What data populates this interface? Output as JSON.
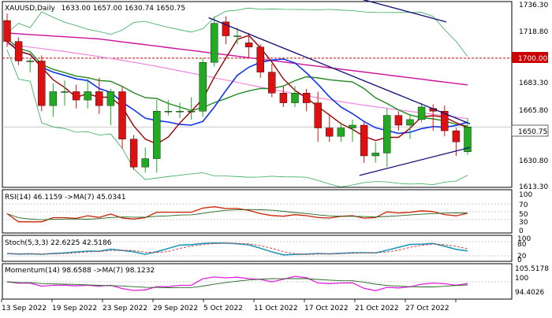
{
  "header": {
    "symbol_title": "XAUUSD,Daily",
    "ohlc": "1633.00 1657.00 1630.74 1650.75"
  },
  "price_axis": {
    "labels": [
      "1736.30",
      "1718.80",
      "1700.00",
      "1683.30",
      "1665.80",
      "1650.75",
      "1630.80",
      "1613.30"
    ],
    "level_1700": "1700.00",
    "current": "1650.75"
  },
  "date_axis": {
    "labels": [
      "13 Sep 2022",
      "19 Sep 2022",
      "23 Sep 2022",
      "29 Sep 2022",
      "5 Oct 2022",
      "11 Oct 2022",
      "17 Oct 2022",
      "21 Oct 2022",
      "27 Oct 2022"
    ]
  },
  "rsi_panel": {
    "title": "RSI(14) 46.1159 ->MA(7) 45.0341",
    "scale": [
      "100",
      "70",
      "50",
      "30",
      "0"
    ]
  },
  "stoch_panel": {
    "title": "Stoch(5,3,3) 22.6225 42.5186",
    "scale": [
      "100",
      "80",
      "20",
      "0"
    ]
  },
  "momentum_panel": {
    "title": "Momentum(14) 98.6588 ->MA(7) 98.1232",
    "scale": [
      "105.5178",
      "100",
      "94.4026"
    ]
  },
  "colors": {
    "bull": "#22aa22",
    "bear": "#dd1111",
    "blue_ma": "#1133ee",
    "maroon_ma": "#990000",
    "green_ma": "#228822",
    "magenta_ma": "#cc1199",
    "pink_ma": "#ee88dd",
    "trendline": "#111177",
    "level_line": "#cc0000",
    "rsi": "#cc2200",
    "rsi_ma": "#226622",
    "stoch_main": "#2299bb",
    "stoch_signal": "#cc3333",
    "mom": "#dd22dd",
    "mom_ma": "#226622"
  },
  "chart_data": {
    "type": "candlestick",
    "ylim": [
      1608,
      1740
    ],
    "candles": [
      {
        "o": 1727,
        "h": 1732,
        "l": 1708,
        "c": 1712
      },
      {
        "o": 1712,
        "h": 1715,
        "l": 1695,
        "c": 1698
      },
      {
        "o": 1698,
        "h": 1700,
        "l": 1690,
        "c": 1698
      },
      {
        "o": 1698,
        "h": 1702,
        "l": 1662,
        "c": 1666
      },
      {
        "o": 1666,
        "h": 1682,
        "l": 1658,
        "c": 1676
      },
      {
        "o": 1676,
        "h": 1684,
        "l": 1666,
        "c": 1676
      },
      {
        "o": 1676,
        "h": 1681,
        "l": 1664,
        "c": 1670
      },
      {
        "o": 1670,
        "h": 1685,
        "l": 1664,
        "c": 1676
      },
      {
        "o": 1676,
        "h": 1686,
        "l": 1660,
        "c": 1666
      },
      {
        "o": 1666,
        "h": 1678,
        "l": 1652,
        "c": 1676
      },
      {
        "o": 1676,
        "h": 1680,
        "l": 1635,
        "c": 1642
      },
      {
        "o": 1642,
        "h": 1645,
        "l": 1620,
        "c": 1622
      },
      {
        "o": 1622,
        "h": 1636,
        "l": 1618,
        "c": 1628
      },
      {
        "o": 1628,
        "h": 1670,
        "l": 1618,
        "c": 1662
      },
      {
        "o": 1662,
        "h": 1670,
        "l": 1659,
        "c": 1662
      },
      {
        "o": 1662,
        "h": 1668,
        "l": 1657,
        "c": 1662
      },
      {
        "o": 1662,
        "h": 1672,
        "l": 1656,
        "c": 1662
      },
      {
        "o": 1662,
        "h": 1700,
        "l": 1658,
        "c": 1697
      },
      {
        "o": 1697,
        "h": 1730,
        "l": 1694,
        "c": 1725
      },
      {
        "o": 1726,
        "h": 1730,
        "l": 1710,
        "c": 1716
      },
      {
        "o": 1716,
        "h": 1722,
        "l": 1710,
        "c": 1716
      },
      {
        "o": 1711,
        "h": 1718,
        "l": 1700,
        "c": 1708
      },
      {
        "o": 1708,
        "h": 1710,
        "l": 1686,
        "c": 1690
      },
      {
        "o": 1690,
        "h": 1696,
        "l": 1672,
        "c": 1675
      },
      {
        "o": 1675,
        "h": 1680,
        "l": 1665,
        "c": 1668
      },
      {
        "o": 1668,
        "h": 1680,
        "l": 1665,
        "c": 1675
      },
      {
        "o": 1675,
        "h": 1678,
        "l": 1662,
        "c": 1668
      },
      {
        "o": 1668,
        "h": 1676,
        "l": 1640,
        "c": 1650
      },
      {
        "o": 1650,
        "h": 1660,
        "l": 1640,
        "c": 1644
      },
      {
        "o": 1644,
        "h": 1654,
        "l": 1640,
        "c": 1650
      },
      {
        "o": 1650,
        "h": 1656,
        "l": 1640,
        "c": 1652
      },
      {
        "o": 1652,
        "h": 1654,
        "l": 1625,
        "c": 1630
      },
      {
        "o": 1630,
        "h": 1640,
        "l": 1625,
        "c": 1632
      },
      {
        "o": 1632,
        "h": 1664,
        "l": 1622,
        "c": 1659
      },
      {
        "o": 1659,
        "h": 1662,
        "l": 1648,
        "c": 1652
      },
      {
        "o": 1652,
        "h": 1660,
        "l": 1642,
        "c": 1656
      },
      {
        "o": 1656,
        "h": 1668,
        "l": 1654,
        "c": 1665
      },
      {
        "o": 1664,
        "h": 1667,
        "l": 1648,
        "c": 1662
      },
      {
        "o": 1662,
        "h": 1666,
        "l": 1644,
        "c": 1648
      },
      {
        "o": 1648,
        "h": 1650,
        "l": 1630,
        "c": 1640
      },
      {
        "o": 1633,
        "h": 1657,
        "l": 1630.74,
        "c": 1650.75
      }
    ]
  }
}
